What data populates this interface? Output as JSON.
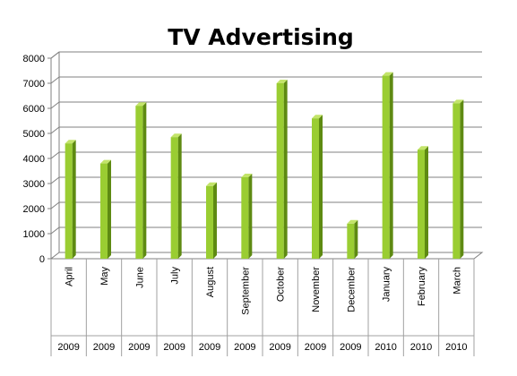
{
  "chart_data": {
    "type": "bar",
    "title": "TV Advertising",
    "xlabel": "",
    "ylabel": "",
    "ylim": [
      0,
      8000
    ],
    "yticks": [
      0,
      1000,
      2000,
      3000,
      4000,
      5000,
      6000,
      7000,
      8000
    ],
    "grid": true,
    "legend": "none",
    "categories": [
      {
        "month": "April",
        "year": "2009"
      },
      {
        "month": "May",
        "year": "2009"
      },
      {
        "month": "June",
        "year": "2009"
      },
      {
        "month": "July",
        "year": "2009"
      },
      {
        "month": "August",
        "year": "2009"
      },
      {
        "month": "September",
        "year": "2009"
      },
      {
        "month": "October",
        "year": "2009"
      },
      {
        "month": "November",
        "year": "2009"
      },
      {
        "month": "December",
        "year": "2009"
      },
      {
        "month": "January",
        "year": "2010"
      },
      {
        "month": "February",
        "year": "2010"
      },
      {
        "month": "March",
        "year": "2010"
      }
    ],
    "values": [
      4600,
      3800,
      6100,
      4850,
      2900,
      3250,
      7000,
      5600,
      1400,
      7300,
      4350,
      6200
    ],
    "colors": {
      "bar_front": "#9acd32",
      "bar_side": "#5e8a12",
      "bar_top": "#c3e46a",
      "grid": "#808080",
      "axis": "#808080"
    }
  }
}
